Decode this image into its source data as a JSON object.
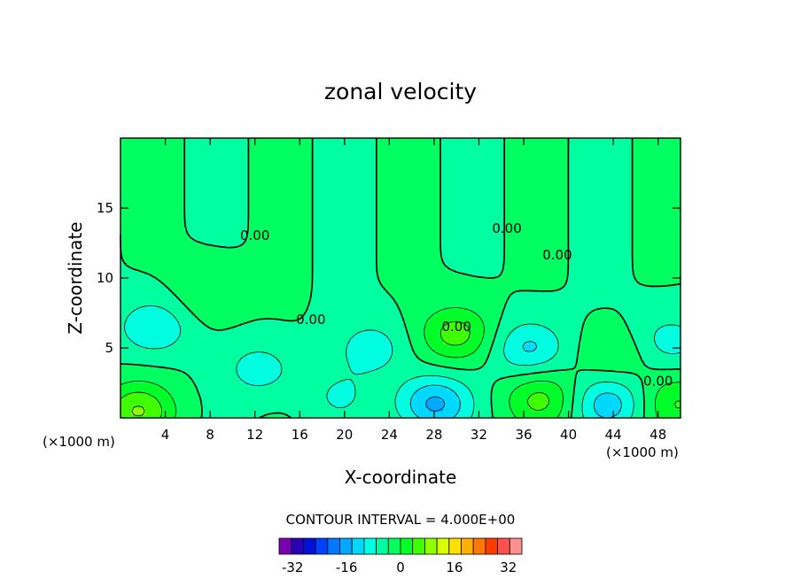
{
  "chart_data": {
    "type": "heatmap",
    "subtype": "filled-contour",
    "title": "zonal velocity",
    "xlabel": "X-coordinate",
    "ylabel": "Z-coordinate",
    "x_unit_label": "(×1000 m)",
    "x_unit_label_right": "(×1000 m)",
    "xlim": [
      0,
      50
    ],
    "ylim": [
      0,
      20
    ],
    "x_ticks": [
      4,
      8,
      12,
      16,
      20,
      24,
      28,
      32,
      36,
      40,
      44,
      48
    ],
    "y_ticks": [
      5,
      10,
      15
    ],
    "contour_interval_text": "CONTOUR INTERVAL = 4.000E+00",
    "contour_interval": 4,
    "contour_labels": [
      "0.00",
      "0.00",
      "0.00",
      "0.00",
      "0.00",
      "0.00"
    ],
    "features": [
      {
        "x": 1.5,
        "z": 0.5,
        "value": 12
      },
      {
        "x": 3.0,
        "z": 6.5,
        "value": -8
      },
      {
        "x": 7.5,
        "z": 8.5,
        "value": 3
      },
      {
        "x": 12.5,
        "z": 3.5,
        "value": -6
      },
      {
        "x": 19.5,
        "z": 1.5,
        "value": -4
      },
      {
        "x": 22.5,
        "z": 5.0,
        "value": -6
      },
      {
        "x": 30.0,
        "z": 6.0,
        "value": 10
      },
      {
        "x": 28.0,
        "z": 1.0,
        "value": -13
      },
      {
        "x": 36.5,
        "z": 5.0,
        "value": -9
      },
      {
        "x": 37.5,
        "z": 1.3,
        "value": 9
      },
      {
        "x": 44.0,
        "z": 4.5,
        "value": 4
      },
      {
        "x": 43.5,
        "z": 1.0,
        "value": -10
      },
      {
        "x": 49.0,
        "z": 5.5,
        "value": -6
      },
      {
        "x": 49.8,
        "z": 1.0,
        "value": 8
      }
    ],
    "colorbar": {
      "min": -36,
      "max": 36,
      "step": 4,
      "tick_labels": [
        "-32",
        "-16",
        "0",
        "16",
        "32"
      ],
      "tick_values": [
        -32,
        -16,
        0,
        16,
        32
      ],
      "colors": [
        "#7a00b4",
        "#2a00b4",
        "#0010d8",
        "#0040ff",
        "#0078ff",
        "#00a8ff",
        "#00d8ff",
        "#00ffe0",
        "#00ffa0",
        "#00ff60",
        "#00ff28",
        "#40ff00",
        "#90ff00",
        "#d8ff00",
        "#ffe000",
        "#ffb000",
        "#ff7800",
        "#ff3c00",
        "#ff5050",
        "#ff9090"
      ]
    }
  }
}
